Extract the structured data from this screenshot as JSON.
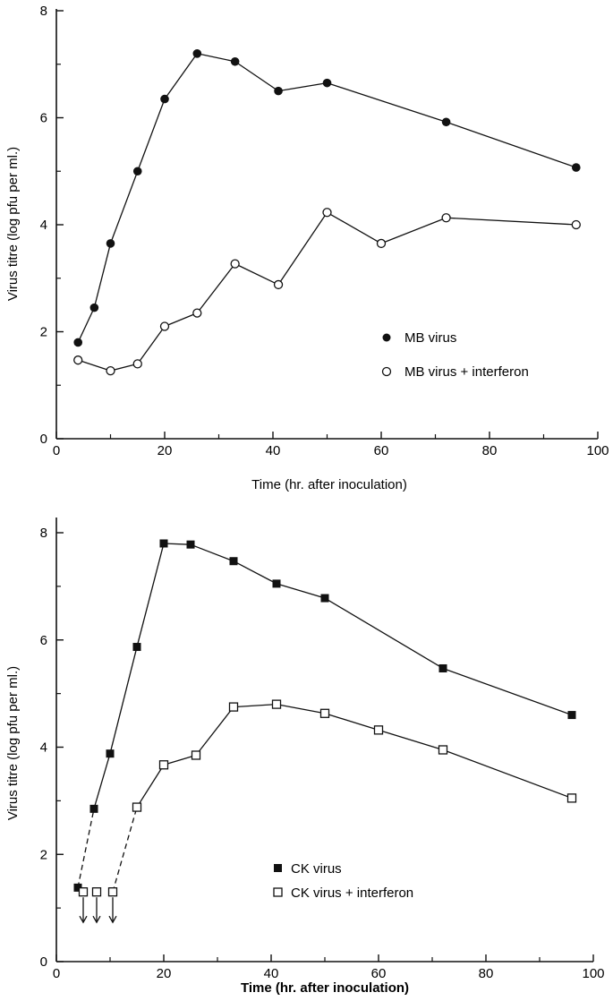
{
  "chart_data": [
    {
      "type": "line",
      "title": "",
      "xlabel": "Time (hr. after inoculation)",
      "ylabel": "Virus titre (log pfu per ml.)",
      "xlim": [
        0,
        100
      ],
      "ylim": [
        0,
        8
      ],
      "xticks": [
        "0",
        "20",
        "40",
        "60",
        "80",
        "100"
      ],
      "yticks": [
        "0",
        "2",
        "4",
        "6",
        "8"
      ],
      "grid": false,
      "legend_position": "lower-right",
      "series": [
        {
          "name": "MB virus",
          "marker": "filled-circle",
          "x": [
            4,
            7,
            10,
            15,
            20,
            26,
            33,
            41,
            50,
            72,
            96
          ],
          "y": [
            1.8,
            2.45,
            3.65,
            5.0,
            6.35,
            7.2,
            7.05,
            6.5,
            6.65,
            5.92,
            5.07
          ]
        },
        {
          "name": "MB virus + interferon",
          "marker": "open-circle",
          "x": [
            4,
            10,
            15,
            20,
            26,
            33,
            41,
            50,
            60,
            72,
            96
          ],
          "y": [
            1.47,
            1.27,
            1.4,
            2.1,
            2.35,
            3.27,
            2.88,
            4.23,
            3.65,
            4.13,
            4.0
          ]
        }
      ]
    },
    {
      "type": "line",
      "title": "",
      "xlabel": "Time (hr. after inoculation)",
      "ylabel": "Virus titre (log pfu per ml.)",
      "xlim": [
        0,
        100
      ],
      "ylim": [
        0,
        8
      ],
      "xticks": [
        "0",
        "20",
        "40",
        "60",
        "80",
        "100"
      ],
      "yticks": [
        "0",
        "2",
        "4",
        "6",
        "8"
      ],
      "grid": false,
      "legend_position": "lower-center",
      "series": [
        {
          "name": "CK virus",
          "marker": "filled-square",
          "x": [
            4,
            7,
            10,
            15,
            20,
            25,
            33,
            41,
            50,
            72,
            96
          ],
          "y": [
            1.38,
            2.85,
            3.88,
            5.87,
            7.8,
            7.78,
            7.47,
            7.05,
            6.78,
            5.47,
            4.6
          ],
          "dashed_segments_from_index": [
            0
          ]
        },
        {
          "name": "CK virus + interferon",
          "marker": "open-square",
          "x": [
            5,
            7.5,
            10.5,
            15,
            20,
            26,
            33,
            41,
            50,
            60,
            72,
            96
          ],
          "y": [
            1.3,
            1.3,
            1.3,
            2.88,
            3.67,
            3.85,
            4.75,
            4.8,
            4.63,
            4.32,
            3.95,
            3.05
          ],
          "below_detection_limit_points": 3,
          "dashed_segments_from_index": [
            2
          ]
        }
      ]
    }
  ]
}
